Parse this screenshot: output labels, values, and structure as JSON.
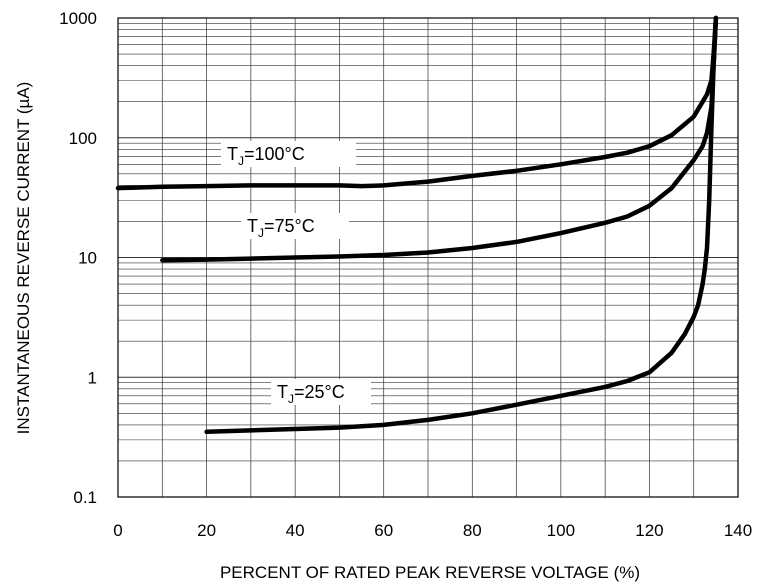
{
  "chart_data": {
    "type": "line",
    "xlabel": "PERCENT OF RATED PEAK REVERSE VOLTAGE (%)",
    "ylabel": "INSTANTANEOUS REVERSE CURRENT (µA)",
    "xlim": [
      0,
      140
    ],
    "ylim": [
      0.1,
      1000
    ],
    "yscale": "log",
    "grid": true,
    "x_ticks": [
      "0",
      "20",
      "40",
      "60",
      "80",
      "100",
      "120",
      "140"
    ],
    "y_ticks": [
      "0.1",
      "1",
      "10",
      "100",
      "1000"
    ],
    "series": [
      {
        "label": {
          "main": "T",
          "sub": "J",
          "rest": "=100°C"
        },
        "x": [
          0,
          10,
          20,
          30,
          40,
          50,
          55,
          60,
          70,
          80,
          90,
          100,
          110,
          115,
          120,
          125,
          130,
          133,
          134,
          134.5,
          135
        ],
        "y": [
          38,
          39,
          39.5,
          40,
          40,
          40,
          39.5,
          40,
          43,
          48,
          53,
          60,
          69,
          75,
          85,
          105,
          150,
          230,
          300,
          500,
          1000
        ]
      },
      {
        "label": {
          "main": "T",
          "sub": "J",
          "rest": "=75°C"
        },
        "x": [
          10,
          20,
          30,
          40,
          50,
          60,
          70,
          80,
          90,
          100,
          110,
          115,
          120,
          125,
          130,
          132,
          133,
          134,
          134.5,
          135
        ],
        "y": [
          9.5,
          9.6,
          9.8,
          10,
          10.2,
          10.5,
          11,
          12,
          13.5,
          16,
          19.5,
          22,
          27,
          38,
          65,
          85,
          110,
          180,
          400,
          1000
        ]
      },
      {
        "label": {
          "main": "T",
          "sub": "J",
          "rest": "=25°C"
        },
        "x": [
          20,
          30,
          40,
          50,
          60,
          70,
          80,
          90,
          100,
          110,
          115,
          120,
          125,
          128,
          130,
          131,
          132,
          132.5,
          133,
          133.5,
          134,
          134.5,
          135
        ],
        "y": [
          0.35,
          0.36,
          0.37,
          0.38,
          0.4,
          0.44,
          0.5,
          0.59,
          0.7,
          0.83,
          0.93,
          1.1,
          1.6,
          2.3,
          3.2,
          4,
          6,
          8,
          12,
          30,
          120,
          400,
          1000
        ]
      }
    ]
  }
}
